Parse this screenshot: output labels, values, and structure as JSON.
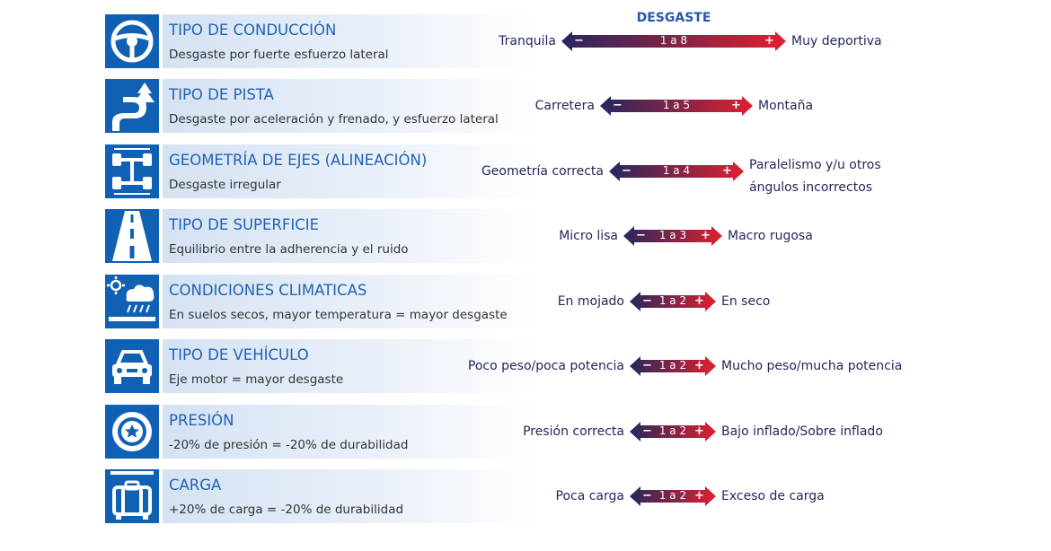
{
  "header": "DESGASTE",
  "colors": {
    "icon_bg": "#1060b4",
    "title": "#1f63b5",
    "arrow_start": "#26275e",
    "arrow_end": "#e0202e"
  },
  "rows": [
    {
      "title": "TIPO DE CONDUCCIÓN",
      "subtitle": "Desgaste por fuerte esfuerzo lateral",
      "icon": "steering-wheel-icon",
      "left": "Tranquila",
      "range": "1 a 8",
      "right": [
        "Muy deportiva"
      ],
      "minus": "−",
      "plus": "+",
      "level": 8
    },
    {
      "title": "TIPO DE PISTA",
      "subtitle": "Desgaste por aceleración y frenado, y esfuerzo lateral",
      "icon": "winding-road-icon",
      "left": "Carretera",
      "range": "1 a 5",
      "right": [
        "Montaña"
      ],
      "minus": "−",
      "plus": "+",
      "level": 5
    },
    {
      "title": "GEOMETRÍA DE EJES (ALINEACIÓN)",
      "subtitle": "Desgaste irregular",
      "icon": "axle-icon",
      "left": "Geometría correcta",
      "range": "1 a 4",
      "right": [
        "Paralelismo y/u otros",
        "ángulos incorrectos"
      ],
      "minus": "−",
      "plus": "+",
      "level": 4
    },
    {
      "title": "TIPO DE SUPERFICIE",
      "subtitle": "Equilibrio entre la adherencia y el ruido",
      "icon": "road-surface-icon",
      "left": "Micro lisa",
      "range": "1 a 3",
      "right": [
        "Macro rugosa"
      ],
      "minus": "−",
      "plus": "+",
      "level": 3
    },
    {
      "title": "CONDICIONES CLIMATICAS",
      "subtitle": "En suelos secos, mayor temperatura = mayor desgaste",
      "icon": "weather-icon",
      "left": "En mojado",
      "range": "1 a 2",
      "right": [
        "En seco"
      ],
      "minus": "−",
      "plus": "+",
      "level": 2
    },
    {
      "title": "TIPO DE VEHÍCULO",
      "subtitle": "Eje motor = mayor desgaste",
      "icon": "car-icon",
      "left": "Poco peso/poca potencia",
      "range": "1 a 2",
      "right": [
        "Mucho peso/mucha potencia"
      ],
      "minus": "−",
      "plus": "+",
      "level": 2
    },
    {
      "title": "PRESIÓN",
      "subtitle": "-20% de presión = -20% de durabilidad",
      "icon": "tire-pressure-icon",
      "left": "Presión correcta",
      "range": "1 a 2",
      "right": [
        "Bajo inflado/Sobre inflado"
      ],
      "minus": "−",
      "plus": "+",
      "level": 2
    },
    {
      "title": "CARGA",
      "subtitle": "+20% de carga = -20% de durabilidad",
      "icon": "luggage-icon",
      "left": "Poca carga",
      "range": "1 a 2",
      "right": [
        "Exceso de carga"
      ],
      "minus": "−",
      "plus": "+",
      "level": 2
    }
  ]
}
